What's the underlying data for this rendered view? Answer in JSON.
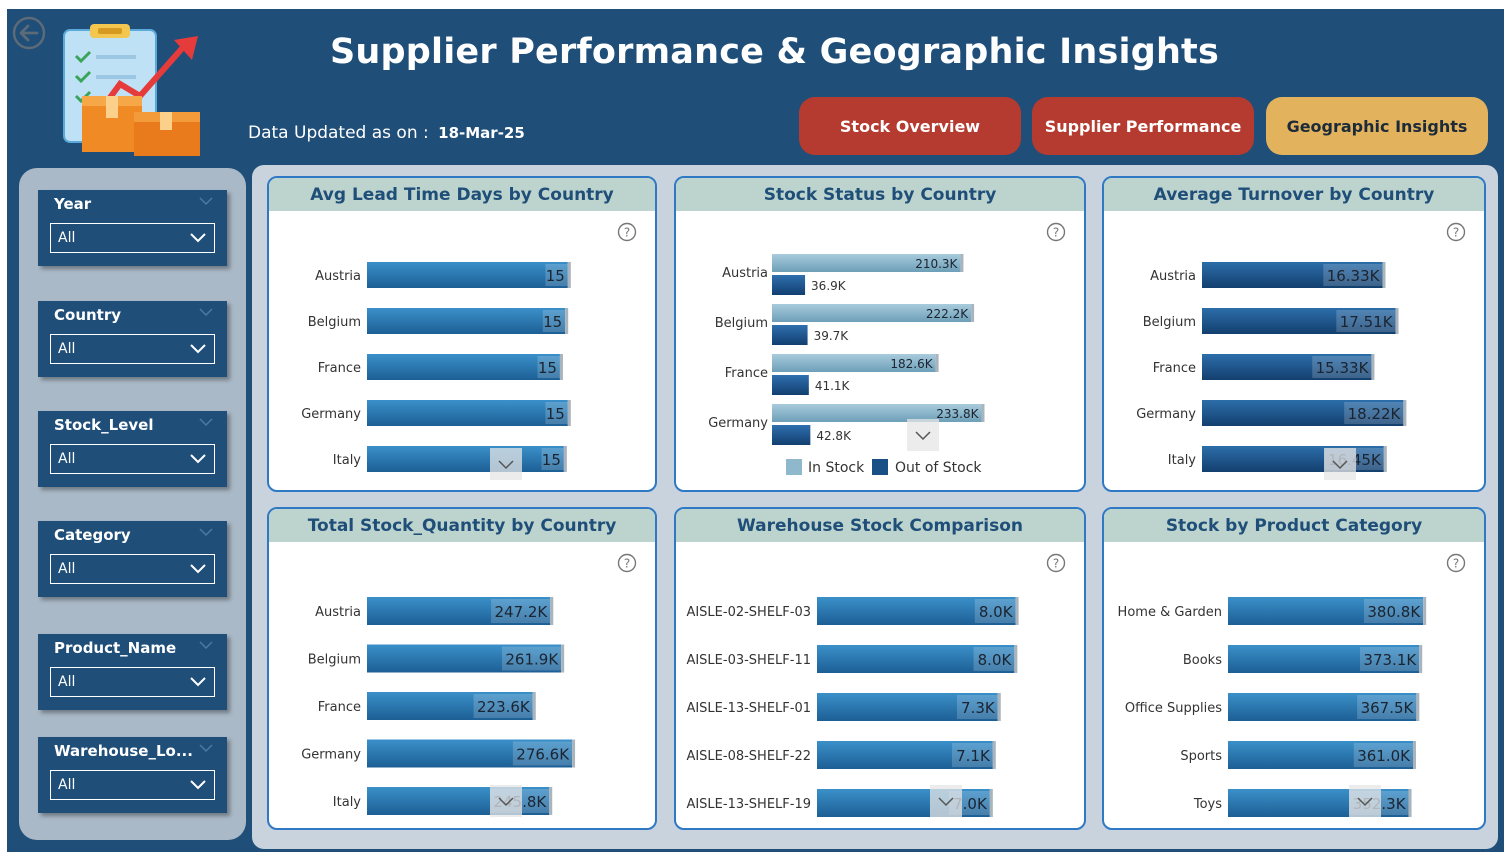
{
  "header": {
    "title": "Supplier Performance & Geographic Insights",
    "updated_label": "Data Updated as on :",
    "updated_date": "18-Mar-25"
  },
  "nav": {
    "stock_overview": "Stock Overview",
    "supplier_performance": "Supplier Performance",
    "geographic_insights": "Geographic Insights"
  },
  "slicers": [
    {
      "title": "Year",
      "value": "All"
    },
    {
      "title": "Country",
      "value": "All"
    },
    {
      "title": "Stock_Level",
      "value": "All"
    },
    {
      "title": "Category",
      "value": "All"
    },
    {
      "title": "Product_Name",
      "value": "All"
    },
    {
      "title": "Warehouse_Lo...",
      "value": "All"
    }
  ],
  "colors": {
    "background": "#1f4e79",
    "bar": "#2f7ab3",
    "bar_dark": "#1a4f86",
    "bar_light": "#7eaec4",
    "card_header": "#bcd4cd",
    "nav_red": "#b53a2f",
    "nav_gold": "#e2b35c"
  },
  "chart_data": [
    {
      "id": "lead",
      "type": "bar",
      "orientation": "horizontal",
      "title": "Avg Lead Time Days by Country",
      "categories": [
        "Austria",
        "Belgium",
        "France",
        "Germany",
        "Italy"
      ],
      "values": [
        15.3,
        15.1,
        14.7,
        15.3,
        15.0
      ],
      "labels": [
        "15",
        "15",
        "15",
        "15",
        "15"
      ],
      "xlim": [
        0,
        16
      ]
    },
    {
      "id": "status",
      "type": "bar",
      "orientation": "horizontal",
      "title": "Stock Status by Country",
      "categories": [
        "Austria",
        "Belgium",
        "France",
        "Germany"
      ],
      "series": [
        {
          "name": "In Stock",
          "values": [
            210.3,
            222.2,
            182.6,
            233.8
          ],
          "labels": [
            "210.3K",
            "222.2K",
            "182.6K",
            "233.8K"
          ]
        },
        {
          "name": "Out of Stock",
          "values": [
            36.9,
            39.7,
            41.1,
            42.8
          ],
          "labels": [
            "36.9K",
            "39.7K",
            "41.1K",
            "42.8K"
          ]
        }
      ],
      "legend": "bottom",
      "xlim": [
        0,
        250
      ]
    },
    {
      "id": "turnover",
      "type": "bar",
      "orientation": "horizontal",
      "title": "Average Turnover by Country",
      "categories": [
        "Austria",
        "Belgium",
        "France",
        "Germany",
        "Italy"
      ],
      "values": [
        16.33,
        17.51,
        15.33,
        18.22,
        16.45
      ],
      "labels": [
        "16.33K",
        "17.51K",
        "15.33K",
        "18.22K",
        "16.45K"
      ],
      "xlim": [
        0,
        19
      ]
    },
    {
      "id": "qty",
      "type": "bar",
      "orientation": "horizontal",
      "title": "Total Stock_Quantity by Country",
      "categories": [
        "Austria",
        "Belgium",
        "France",
        "Germany",
        "Italy"
      ],
      "values": [
        247.2,
        261.9,
        223.6,
        276.6,
        245.8
      ],
      "labels": [
        "247.2K",
        "261.9K",
        "223.6K",
        "276.6K",
        "245.8K"
      ],
      "xlim": [
        0,
        290
      ]
    },
    {
      "id": "warehouse",
      "type": "bar",
      "orientation": "horizontal",
      "title": "Warehouse Stock Comparison",
      "categories": [
        "AISLE-02-SHELF-03",
        "AISLE-03-SHELF-11",
        "AISLE-13-SHELF-01",
        "AISLE-08-SHELF-22",
        "AISLE-13-SHELF-19"
      ],
      "values": [
        8.02,
        7.97,
        7.3,
        7.1,
        6.98
      ],
      "labels": [
        "8.0K",
        "8.0K",
        "7.3K",
        "7.1K",
        "7.0K"
      ],
      "xlim": [
        0,
        8.4
      ]
    },
    {
      "id": "category",
      "type": "bar",
      "orientation": "horizontal",
      "title": "Stock by Product Category",
      "categories": [
        "Home & Garden",
        "Books",
        "Office Supplies",
        "Sports",
        "Toys"
      ],
      "values": [
        380.8,
        373.1,
        367.5,
        361.0,
        352.3
      ],
      "labels": [
        "380.8K",
        "373.1K",
        "367.5K",
        "361.0K",
        "352.3K"
      ],
      "xlim": [
        0,
        400
      ]
    }
  ]
}
